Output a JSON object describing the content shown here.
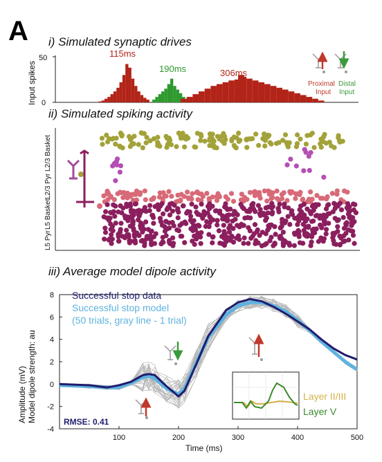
{
  "panel_letter": "A",
  "panel_i": {
    "title": "i) Simulated synaptic drives",
    "ylabel": "Input spikes",
    "yticks": [
      "0",
      "50"
    ],
    "peaks": [
      {
        "label": "115ms",
        "color": "#b22418"
      },
      {
        "label": "190ms",
        "color": "#2e9a2e"
      },
      {
        "label": "306ms",
        "color": "#b22418"
      }
    ],
    "legend": {
      "proximal": {
        "line1": "Proximal",
        "line2": "Input",
        "color": "#c0392b"
      },
      "distal": {
        "line1": "Distal",
        "line2": "Input",
        "color": "#3a9a3a"
      }
    }
  },
  "panel_ii": {
    "title": "ii) Simulated spiking activity",
    "row_labels": [
      "L2/3 Basket",
      "L2/3 Pyr",
      "L5 Basket",
      "L5 Pyr"
    ],
    "colors": {
      "l23_basket": "#a3a23a",
      "l23_pyr": "#b44fb4",
      "l5_basket": "#d86a78",
      "l5_pyr": "#8b1f5e"
    }
  },
  "panel_iii": {
    "title": "iii) Average model dipole activity",
    "ylabel1": "Amplitude (mV)",
    "ylabel2": "Model dipole strength: au",
    "xlabel": "Time (ms)",
    "rmse": "RMSE: 0.41",
    "legend": {
      "data_label": "Successful stop data",
      "model_label": "Successful stop model",
      "trials_label": "(50 trials, gray line - 1 trial)"
    },
    "inset": {
      "layer23": "Layer II/III",
      "layer5": "Layer V",
      "layer23_color": "#d4b24a",
      "layer5_color": "#3a8a2a"
    }
  },
  "chart_data": [
    {
      "type": "bar",
      "title": "i) Simulated synaptic drives",
      "ylabel": "Input spikes",
      "ylim": [
        0,
        50
      ],
      "series": [
        {
          "name": "Proximal Input",
          "x": [
            70,
            75,
            80,
            85,
            90,
            95,
            100,
            105,
            110,
            115,
            120,
            125,
            130,
            135,
            140,
            145,
            150
          ],
          "values": [
            1,
            2,
            4,
            6,
            9,
            12,
            16,
            22,
            30,
            42,
            38,
            26,
            18,
            12,
            8,
            5,
            3
          ]
        },
        {
          "name": "Distal Input",
          "x": [
            160,
            165,
            170,
            175,
            180,
            185,
            190,
            195,
            200,
            205,
            210,
            215
          ],
          "values": [
            3,
            6,
            9,
            12,
            15,
            20,
            26,
            18,
            14,
            10,
            6,
            3
          ]
        },
        {
          "name": "Proximal Input",
          "x": [
            210,
            220,
            230,
            240,
            250,
            260,
            270,
            280,
            290,
            300,
            306,
            310,
            320,
            330,
            340,
            350,
            360,
            370,
            380,
            390,
            400,
            410,
            420,
            430,
            440
          ],
          "values": [
            4,
            6,
            9,
            12,
            15,
            18,
            20,
            22,
            24,
            25,
            30,
            28,
            26,
            24,
            22,
            20,
            18,
            16,
            14,
            12,
            10,
            8,
            6,
            4,
            2
          ]
        }
      ]
    },
    {
      "type": "line",
      "title": "iii) Average model dipole activity",
      "xlabel": "Time (ms)",
      "ylabel": "Amplitude (mV) / Model dipole strength: au",
      "xlim": [
        0,
        500
      ],
      "ylim": [
        -4,
        8
      ],
      "xticks": [
        100,
        200,
        300,
        400,
        500
      ],
      "yticks": [
        -4,
        -2,
        0,
        2,
        4,
        6,
        8
      ],
      "series": [
        {
          "name": "Successful stop data",
          "color": "#1f1d6e",
          "x": [
            0,
            50,
            80,
            100,
            120,
            140,
            150,
            160,
            180,
            200,
            210,
            230,
            250,
            280,
            300,
            320,
            340,
            360,
            380,
            400,
            420,
            440,
            460,
            480,
            500
          ],
          "values": [
            0,
            -0.1,
            -0.3,
            -0.1,
            0.2,
            0.8,
            0.9,
            0.8,
            -0.2,
            -1.1,
            -0.6,
            1.8,
            4.3,
            6.6,
            7.3,
            7.6,
            7.4,
            6.9,
            6.3,
            5.6,
            4.9,
            4.0,
            3.2,
            2.6,
            2.2
          ]
        },
        {
          "name": "Successful stop model",
          "color": "#5fb2de",
          "x": [
            0,
            50,
            80,
            100,
            120,
            140,
            150,
            160,
            180,
            200,
            210,
            230,
            250,
            280,
            300,
            320,
            340,
            360,
            380,
            400,
            420,
            440,
            460,
            480,
            500
          ],
          "values": [
            -0.1,
            -0.2,
            -0.3,
            -0.3,
            0.1,
            0.6,
            0.7,
            0.5,
            -0.4,
            -0.9,
            -0.4,
            1.9,
            4.2,
            6.2,
            7.0,
            7.3,
            7.3,
            7.0,
            6.5,
            5.7,
            4.8,
            3.8,
            2.9,
            2.0,
            1.3
          ]
        }
      ]
    }
  ]
}
